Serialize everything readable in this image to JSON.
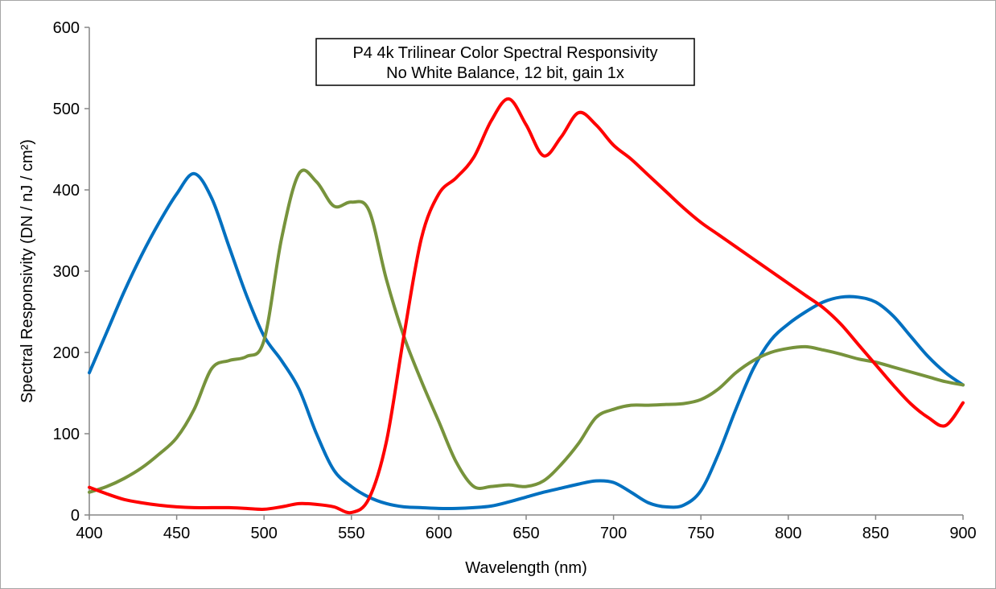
{
  "chart_data": {
    "type": "line",
    "title": "P4 4k Trilinear Color Spectral Responsivity",
    "subtitle": "No White Balance, 12 bit, gain 1x",
    "xlabel": "Wavelength (nm)",
    "ylabel": "Spectral Responsivity (DN / nJ / cm²)",
    "xlim": [
      400,
      900
    ],
    "ylim": [
      0,
      600
    ],
    "xticks": [
      "400",
      "450",
      "500",
      "550",
      "600",
      "650",
      "700",
      "750",
      "800",
      "850",
      "900"
    ],
    "yticks": [
      "0",
      "100",
      "200",
      "300",
      "400",
      "500",
      "600"
    ],
    "grid": false,
    "legend": "none",
    "series": [
      {
        "color": "#0070c0",
        "x": [
          400,
          410,
          420,
          430,
          440,
          450,
          460,
          470,
          480,
          490,
          500,
          510,
          520,
          530,
          540,
          550,
          560,
          570,
          580,
          590,
          600,
          610,
          620,
          630,
          640,
          650,
          660,
          670,
          680,
          690,
          700,
          710,
          720,
          730,
          740,
          750,
          760,
          770,
          780,
          790,
          800,
          810,
          820,
          830,
          840,
          850,
          860,
          870,
          880,
          890,
          900
        ],
        "y": [
          175,
          225,
          275,
          320,
          360,
          395,
          420,
          390,
          330,
          270,
          220,
          190,
          155,
          100,
          55,
          35,
          22,
          14,
          10,
          9,
          8,
          8,
          9,
          11,
          16,
          22,
          28,
          33,
          38,
          42,
          40,
          28,
          15,
          10,
          12,
          30,
          75,
          130,
          180,
          215,
          235,
          250,
          262,
          268,
          268,
          262,
          245,
          220,
          195,
          175,
          160
        ]
      },
      {
        "color": "#77933c",
        "x": [
          400,
          410,
          420,
          430,
          440,
          450,
          460,
          470,
          480,
          490,
          500,
          510,
          520,
          530,
          540,
          550,
          560,
          570,
          580,
          590,
          600,
          610,
          620,
          630,
          640,
          650,
          660,
          670,
          680,
          690,
          700,
          710,
          720,
          730,
          740,
          750,
          760,
          770,
          780,
          790,
          800,
          810,
          820,
          830,
          840,
          850,
          860,
          870,
          880,
          890,
          900
        ],
        "y": [
          28,
          35,
          45,
          58,
          75,
          95,
          130,
          180,
          190,
          195,
          215,
          340,
          420,
          410,
          380,
          385,
          375,
          290,
          220,
          165,
          115,
          65,
          35,
          35,
          37,
          35,
          42,
          62,
          88,
          120,
          130,
          135,
          135,
          136,
          137,
          142,
          155,
          175,
          190,
          200,
          205,
          207,
          203,
          198,
          192,
          188,
          182,
          176,
          170,
          164,
          160
        ]
      },
      {
        "color": "#ff0000",
        "x": [
          400,
          410,
          420,
          430,
          440,
          450,
          460,
          470,
          480,
          490,
          500,
          510,
          520,
          530,
          540,
          550,
          560,
          570,
          580,
          590,
          600,
          610,
          620,
          630,
          640,
          650,
          660,
          670,
          680,
          690,
          700,
          710,
          720,
          730,
          740,
          750,
          760,
          770,
          780,
          790,
          800,
          810,
          820,
          830,
          840,
          850,
          860,
          870,
          880,
          890,
          900
        ],
        "y": [
          34,
          26,
          19,
          15,
          12,
          10,
          9,
          9,
          9,
          8,
          7,
          10,
          14,
          13,
          10,
          3,
          20,
          90,
          220,
          340,
          395,
          415,
          440,
          485,
          512,
          480,
          442,
          465,
          495,
          480,
          455,
          438,
          418,
          398,
          378,
          360,
          345,
          330,
          315,
          300,
          285,
          270,
          255,
          235,
          210,
          185,
          160,
          137,
          120,
          110,
          138
        ]
      }
    ]
  }
}
